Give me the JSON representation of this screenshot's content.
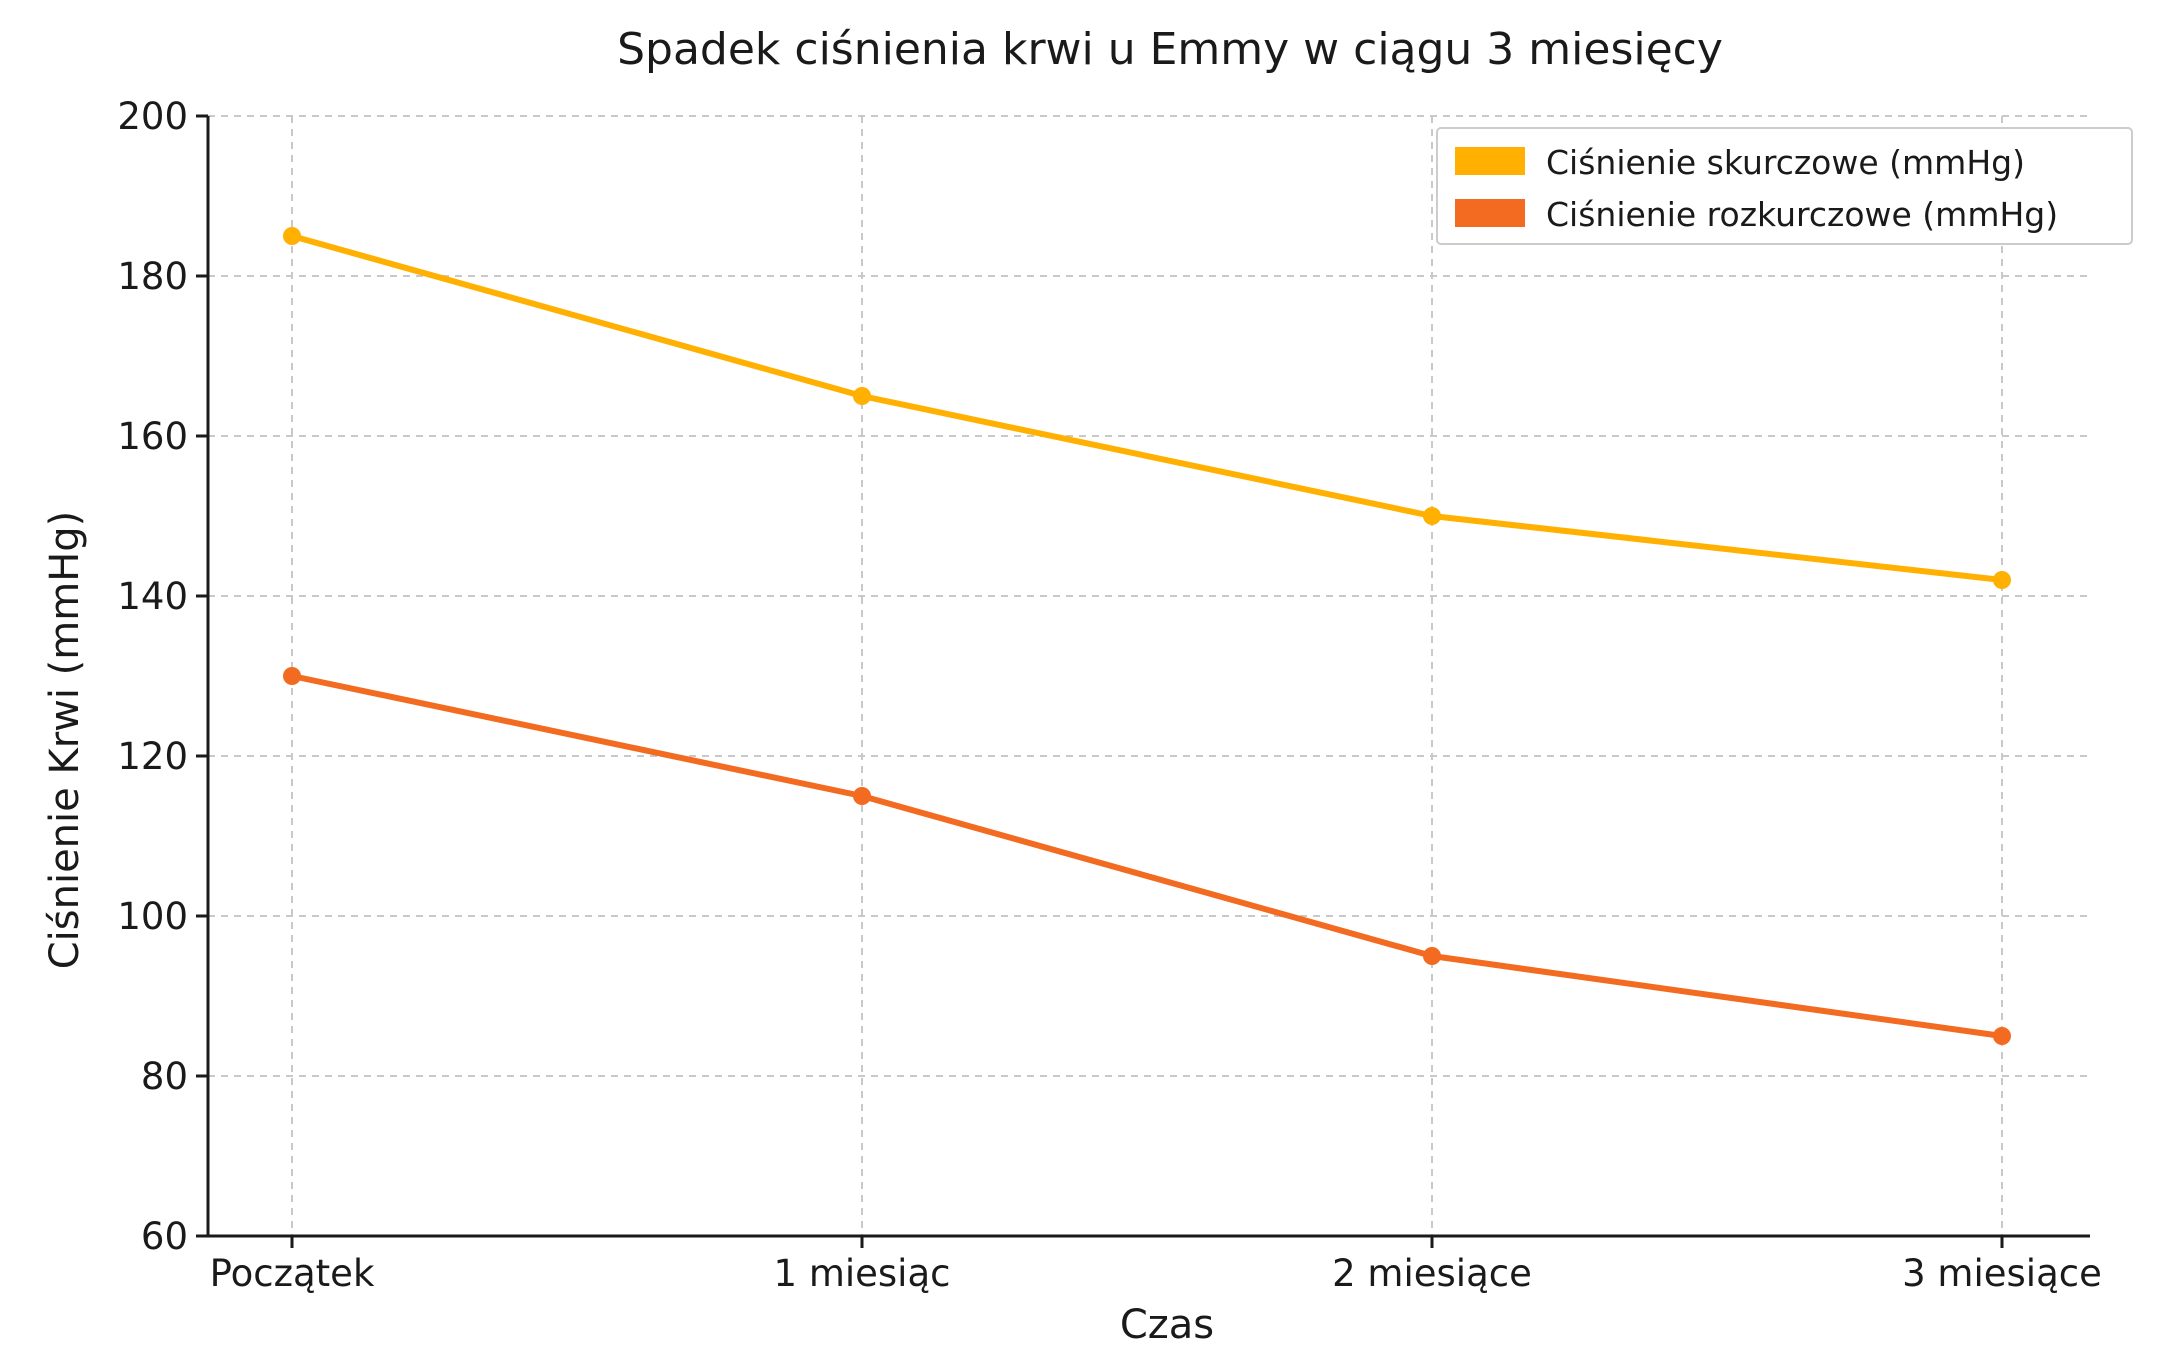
{
  "chart_data": {
    "type": "line",
    "title": "Spadek ciśnienia krwi u Emmy w ciągu 3 miesięcy",
    "xlabel": "Czas",
    "ylabel": "Ciśnienie Krwi (mmHg)",
    "categories": [
      "Początek",
      "1 miesiąc",
      "2 miesiące",
      "3 miesiące"
    ],
    "ylim": [
      60,
      200
    ],
    "yticks": [
      60,
      80,
      100,
      120,
      140,
      160,
      180,
      200
    ],
    "grid": true,
    "legend_position": "top-right",
    "series": [
      {
        "name": "Ciśnienie skurczowe (mmHg)",
        "values": [
          185,
          165,
          150,
          142
        ],
        "color": "#FFB000"
      },
      {
        "name": "Ciśnienie rozkurczowe (mmHg)",
        "values": [
          130,
          115,
          95,
          85
        ],
        "color": "#F26B21"
      }
    ]
  }
}
